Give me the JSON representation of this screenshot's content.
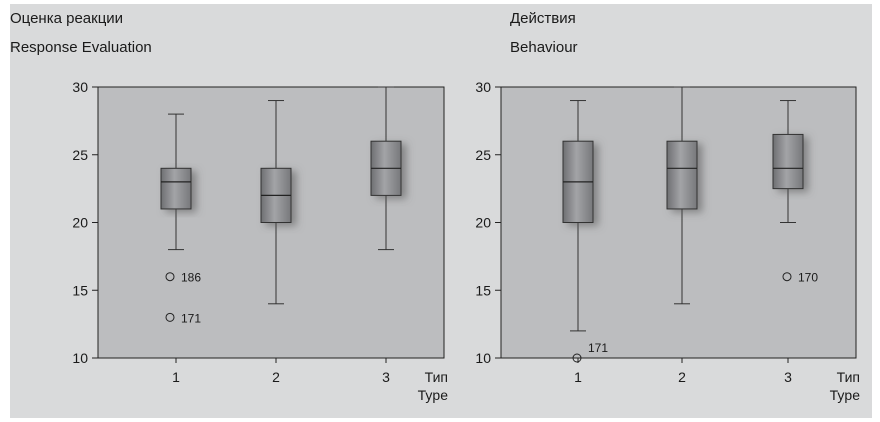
{
  "chart_data": [
    {
      "type": "boxplot",
      "title_ru": "Оценка реакции",
      "title_en": "Response Evaluation",
      "xlabel_ru": "Тип",
      "xlabel_en": "Type",
      "ylim": [
        10,
        30
      ],
      "yticks": [
        10,
        15,
        20,
        25,
        30
      ],
      "categories": [
        "1",
        "2",
        "3"
      ],
      "boxes": [
        {
          "category": "1",
          "whisker_low": 18,
          "q1": 21,
          "median": 23,
          "q3": 24,
          "whisker_high": 28
        },
        {
          "category": "2",
          "whisker_low": 14,
          "q1": 20,
          "median": 22,
          "q3": 24,
          "whisker_high": 29
        },
        {
          "category": "3",
          "whisker_low": 18,
          "q1": 22,
          "median": 24,
          "q3": 26,
          "whisker_high": 30
        }
      ],
      "outliers": [
        {
          "category": "1",
          "value": 16,
          "label": "186"
        },
        {
          "category": "1",
          "value": 13,
          "label": "171"
        }
      ],
      "colors": {
        "panel": "#bcbdbf",
        "box": "#8e8f92"
      }
    },
    {
      "type": "boxplot",
      "title_ru": "Действия",
      "title_en": "Behaviour",
      "xlabel_ru": "Тип",
      "xlabel_en": "Type",
      "ylim": [
        10,
        30
      ],
      "yticks": [
        10,
        15,
        20,
        25,
        30
      ],
      "categories": [
        "1",
        "2",
        "3"
      ],
      "boxes": [
        {
          "category": "1",
          "whisker_low": 12,
          "q1": 20,
          "median": 23,
          "q3": 26,
          "whisker_high": 29
        },
        {
          "category": "2",
          "whisker_low": 14,
          "q1": 21,
          "median": 24,
          "q3": 26,
          "whisker_high": 30
        },
        {
          "category": "3",
          "whisker_low": 20,
          "q1": 22.5,
          "median": 24,
          "q3": 26.5,
          "whisker_high": 29
        }
      ],
      "outliers": [
        {
          "category": "1",
          "value": 10,
          "label": "171"
        },
        {
          "category": "3",
          "value": 16,
          "label": "170"
        }
      ],
      "colors": {
        "panel": "#bcbdbf",
        "box": "#8e8f92"
      }
    }
  ]
}
